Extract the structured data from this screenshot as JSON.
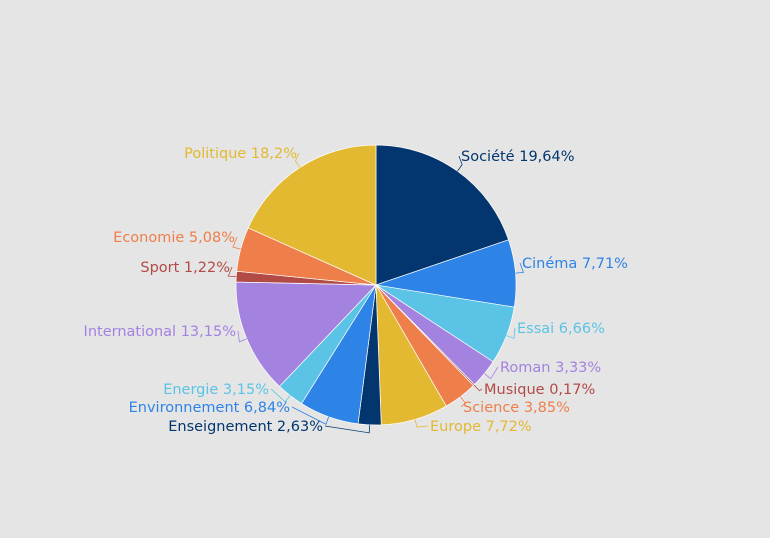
{
  "chart_data": {
    "type": "pie",
    "title": "",
    "start_angle": "top",
    "direction": "clockwise",
    "label_format": "{label} {value}%",
    "slices": [
      {
        "label": "Société",
        "value": 19.64,
        "display": "19,64",
        "color": "#03366f"
      },
      {
        "label": "Cinéma",
        "value": 7.71,
        "display": "7,71",
        "color": "#2e83e6"
      },
      {
        "label": "Essai",
        "value": 6.66,
        "display": "6,66",
        "color": "#5bc4e6"
      },
      {
        "label": "Roman",
        "value": 3.33,
        "display": "3,33",
        "color": "#a482e0"
      },
      {
        "label": "Musique",
        "value": 0.17,
        "display": "0,17",
        "color": "#b24a46"
      },
      {
        "label": "Science",
        "value": 3.85,
        "display": "3,85",
        "color": "#ee7f4a"
      },
      {
        "label": "Europe",
        "value": 7.72,
        "display": "7,72",
        "color": "#e2b930"
      },
      {
        "label": "Enseignement",
        "value": 2.63,
        "display": "2,63",
        "color": "#03366f"
      },
      {
        "label": "Environnement",
        "value": 6.84,
        "display": "6,84",
        "color": "#2e83e6"
      },
      {
        "label": "Energie",
        "value": 3.15,
        "display": "3,15",
        "color": "#5bc4e6"
      },
      {
        "label": "International",
        "value": 13.15,
        "display": "13,15",
        "color": "#a482e0"
      },
      {
        "label": "Sport",
        "value": 1.22,
        "display": "1,22",
        "color": "#b24a46"
      },
      {
        "label": "Economie",
        "value": 5.08,
        "display": "5,08",
        "color": "#ee7f4a"
      },
      {
        "label": "Politique",
        "value": 18.2,
        "display": "18,2",
        "color": "#e2b930"
      }
    ]
  }
}
